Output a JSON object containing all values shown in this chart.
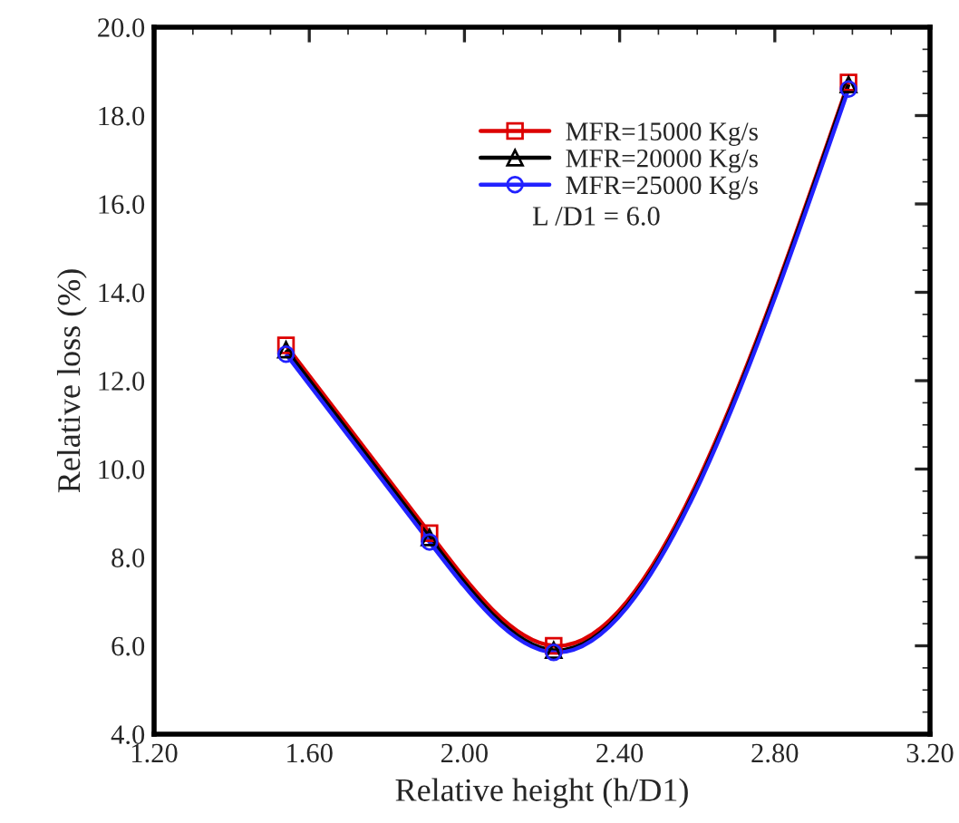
{
  "chart_data": {
    "type": "line",
    "xlabel": "Relative height (h/D1)",
    "ylabel": "Relative loss (%)",
    "x": [
      1.54,
      1.91,
      2.23,
      2.99
    ],
    "series": [
      {
        "name": "MFR=15000 Kg/s",
        "color": "#dd0000",
        "values": [
          12.8,
          8.55,
          6.0,
          18.75
        ],
        "marker": "square"
      },
      {
        "name": "MFR=20000 Kg/s",
        "color": "#000000",
        "values": [
          12.7,
          8.45,
          5.9,
          18.7
        ],
        "marker": "triangle"
      },
      {
        "name": "MFR=25000 Kg/s",
        "color": "#2222ff",
        "values": [
          12.6,
          8.35,
          5.85,
          18.6
        ],
        "marker": "circle"
      }
    ],
    "xlim": [
      1.2,
      3.2
    ],
    "xticks": [
      {
        "value": 1.2,
        "label": "1.20"
      },
      {
        "value": 1.6,
        "label": "1.60"
      },
      {
        "value": 2.0,
        "label": "2.00"
      },
      {
        "value": 2.4,
        "label": "2.40"
      },
      {
        "value": 2.8,
        "label": "2.80"
      },
      {
        "value": 3.2,
        "label": "3.20"
      }
    ],
    "ylim": [
      4.0,
      20.0
    ],
    "yticks": [
      {
        "value": 4,
        "label": "4.0"
      },
      {
        "value": 6,
        "label": "6.0"
      },
      {
        "value": 8,
        "label": "8.0"
      },
      {
        "value": 10,
        "label": "10.0"
      },
      {
        "value": 12,
        "label": "12.0"
      },
      {
        "value": 14,
        "label": "14.0"
      },
      {
        "value": 16,
        "label": "16.0"
      },
      {
        "value": 18,
        "label": "18.0"
      },
      {
        "value": 20,
        "label": "20.0"
      }
    ],
    "annotations": [
      "L /D1 = 6.0"
    ],
    "legend": "top",
    "grid": false,
    "line_style": "solid"
  }
}
